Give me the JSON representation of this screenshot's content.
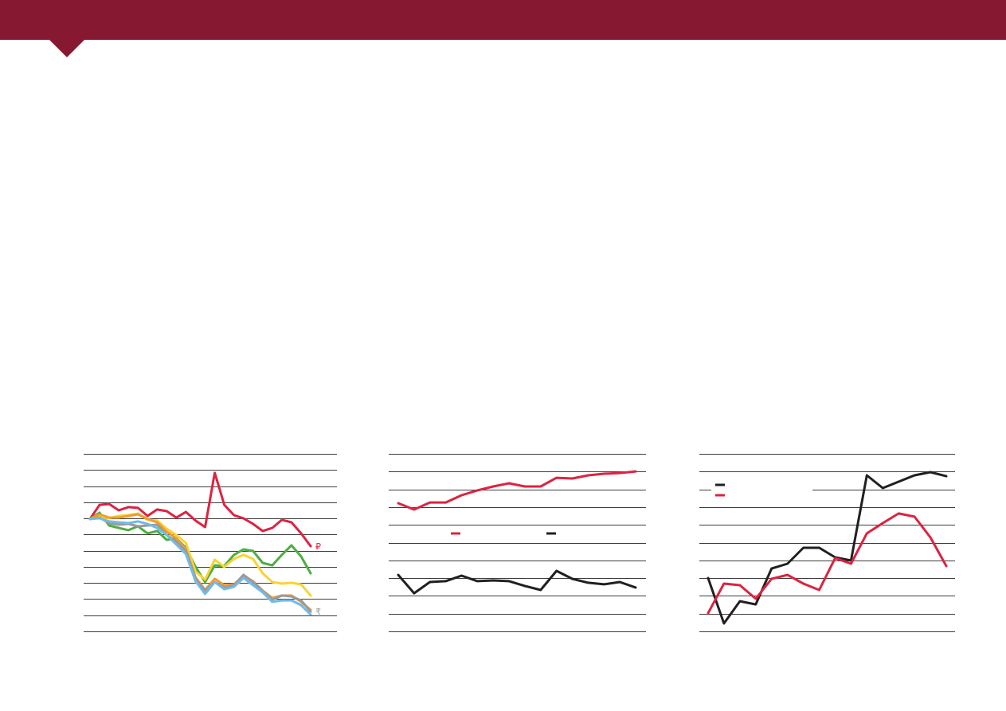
{
  "header": {
    "accent_color": "#871831"
  },
  "chart_data": [
    {
      "type": "line",
      "ylim": [
        0,
        11
      ],
      "grid": true,
      "legend": "none",
      "series": [
        {
          "name": "₽",
          "color": "#dd2340",
          "values": [
            6.96,
            7.84,
            7.89,
            7.5,
            7.7,
            7.65,
            7.15,
            7.55,
            7.45,
            7.05,
            7.4,
            6.86,
            6.46,
            9.82,
            7.84,
            7.2,
            7.0,
            6.66,
            6.22,
            6.41,
            6.91,
            6.76,
            6.07,
            5.28
          ]
        },
        {
          "color": "#4cae3f",
          "values": [
            6.96,
            7.35,
            6.56,
            6.41,
            6.27,
            6.51,
            6.07,
            6.22,
            5.67,
            5.77,
            5.18,
            4.0,
            3.06,
            4.09,
            4.05,
            4.74,
            5.08,
            4.98,
            4.24,
            4.09,
            4.74,
            5.33,
            4.64,
            3.6
          ]
        },
        {
          "color": "#f6d433",
          "values": [
            6.96,
            7.1,
            7.01,
            7.15,
            7.2,
            7.3,
            6.91,
            6.86,
            6.36,
            5.97,
            5.48,
            3.7,
            3.21,
            4.44,
            4.0,
            4.49,
            4.74,
            4.49,
            3.6,
            3.06,
            2.96,
            3.01,
            2.91,
            2.22
          ]
        },
        {
          "color": "#f39b2c",
          "values": [
            6.96,
            7.25,
            7.05,
            7.05,
            7.15,
            7.25,
            6.96,
            6.76,
            6.17,
            5.77,
            5.08,
            3.35,
            2.57,
            3.26,
            2.86,
            2.91,
            3.45,
            3.11,
            2.52,
            2.07,
            2.22,
            2.22,
            1.83,
            1.33
          ]
        },
        {
          "name": "₹",
          "color": "#9a9a9a",
          "values": [
            6.96,
            7.05,
            6.71,
            6.61,
            6.66,
            6.51,
            6.56,
            6.61,
            5.97,
            5.57,
            4.98,
            3.26,
            2.52,
            3.06,
            2.71,
            2.86,
            3.5,
            3.06,
            2.52,
            1.97,
            2.22,
            2.17,
            1.92,
            1.23
          ]
        },
        {
          "color": "#70bbe9",
          "values": [
            6.96,
            7.01,
            6.81,
            6.76,
            6.71,
            6.81,
            6.66,
            6.41,
            5.97,
            5.38,
            4.79,
            3.11,
            2.32,
            3.06,
            2.61,
            2.76,
            3.31,
            2.86,
            2.42,
            1.83,
            1.92,
            1.92,
            1.63,
            1.04
          ]
        }
      ]
    },
    {
      "type": "line",
      "ylim": [
        0,
        10
      ],
      "grid": true,
      "legend": "center",
      "series": [
        {
          "color": "#dd2340",
          "values": [
            7.22,
            6.86,
            7.26,
            7.26,
            7.67,
            7.94,
            8.16,
            8.34,
            8.16,
            8.16,
            8.65,
            8.61,
            8.79,
            8.88,
            8.92,
            9.01
          ]
        },
        {
          "color": "#231f20",
          "values": [
            3.18,
            2.15,
            2.78,
            2.83,
            3.14,
            2.83,
            2.87,
            2.83,
            2.56,
            2.33,
            3.41,
            2.96,
            2.74,
            2.65,
            2.78,
            2.47
          ]
        }
      ]
    },
    {
      "type": "line",
      "ylim": [
        0,
        10
      ],
      "grid": true,
      "legend": "top-left",
      "series": [
        {
          "color": "#231f20",
          "values": [
            3.0,
            0.45,
            1.7,
            1.52,
            3.54,
            3.81,
            4.71,
            4.71,
            4.17,
            3.99,
            8.79,
            8.07,
            8.43,
            8.79,
            8.97,
            8.74
          ]
        },
        {
          "color": "#dd2340",
          "values": [
            1.03,
            2.69,
            2.6,
            1.84,
            2.96,
            3.18,
            2.69,
            2.33,
            4.13,
            3.81,
            5.52,
            6.1,
            6.64,
            6.46,
            5.29,
            3.68
          ]
        }
      ]
    }
  ]
}
